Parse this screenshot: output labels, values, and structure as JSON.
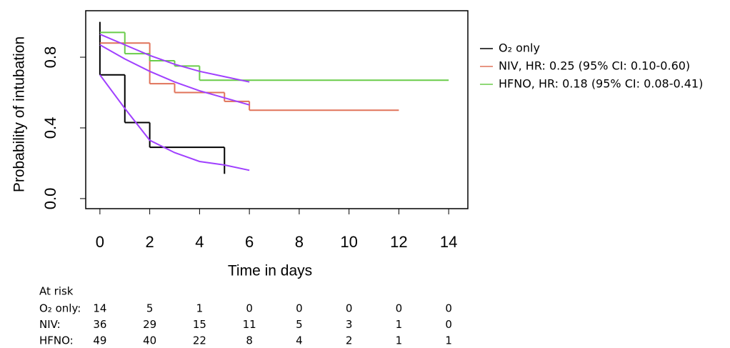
{
  "chart_data": {
    "type": "step",
    "xlabel": "Time in days",
    "ylabel": "Probability of intubation",
    "xlim": [
      -0.57,
      14.77
    ],
    "ylim": [
      -0.057,
      1.063
    ],
    "xticks": [
      0,
      2,
      4,
      6,
      8,
      10,
      12,
      14
    ],
    "yticks": [
      {
        "value": 0,
        "label": "0.0"
      },
      0.4,
      0.8
    ],
    "grid": false,
    "legend": "right",
    "series": [
      {
        "name": "O₂ only",
        "color": "#000000",
        "x": [
          0,
          0,
          1,
          2,
          5
        ],
        "values": [
          1.0,
          0.7,
          0.43,
          0.29,
          0.14
        ]
      },
      {
        "name": "NIV, HR: 0.25 (95% CI: 0.10-0.60)",
        "color": "#e0735a",
        "x": [
          0,
          2,
          3,
          5,
          6,
          12
        ],
        "values": [
          0.88,
          0.65,
          0.6,
          0.55,
          0.5,
          0.5
        ]
      },
      {
        "name": "HFNO, HR: 0.18 (95% CI: 0.08-0.41)",
        "color": "#6acc4a",
        "x": [
          0,
          1,
          2,
          3,
          4,
          14
        ],
        "values": [
          0.94,
          0.82,
          0.78,
          0.75,
          0.67,
          0.67
        ]
      }
    ],
    "fitted": [
      {
        "color": "#a040ff",
        "x": [
          0,
          1,
          2,
          3,
          4,
          5,
          6
        ],
        "values": [
          0.7,
          0.51,
          0.33,
          0.26,
          0.21,
          0.19,
          0.16
        ]
      },
      {
        "color": "#a040ff",
        "x": [
          0,
          1,
          2,
          3,
          4,
          5,
          6
        ],
        "values": [
          0.87,
          0.79,
          0.72,
          0.66,
          0.61,
          0.57,
          0.53
        ]
      },
      {
        "color": "#a040ff",
        "x": [
          0,
          1,
          2,
          3,
          4,
          5,
          6
        ],
        "values": [
          0.93,
          0.87,
          0.81,
          0.76,
          0.72,
          0.69,
          0.66
        ]
      }
    ]
  },
  "at_risk": {
    "title": "At risk",
    "rows": [
      {
        "label": "O₂ only:",
        "values": [
          "14",
          "5",
          "1",
          "0",
          "0",
          "0",
          "0",
          "0"
        ]
      },
      {
        "label": "NIV:",
        "values": [
          "36",
          "29",
          "15",
          "11",
          "5",
          "3",
          "1",
          "0"
        ]
      },
      {
        "label": "HFNO:",
        "values": [
          "49",
          "40",
          "22",
          "8",
          "4",
          "2",
          "1",
          "1"
        ]
      }
    ]
  }
}
